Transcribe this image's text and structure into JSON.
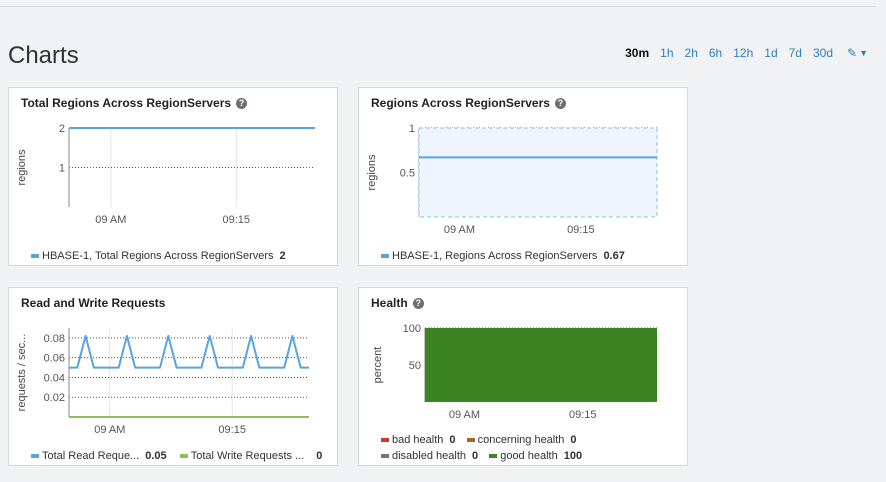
{
  "page": {
    "title": "Charts"
  },
  "time_ranges": {
    "items": [
      "30m",
      "1h",
      "2h",
      "6h",
      "12h",
      "1d",
      "7d",
      "30d"
    ],
    "active": "30m",
    "edit_icon": "pencil-icon"
  },
  "cards": {
    "total_regions": {
      "title": "Total Regions Across RegionServers",
      "ylabel": "regions",
      "legend": [
        {
          "label": "HBASE-1, Total Regions Across RegionServers",
          "value": "2",
          "color": "#5aa3df"
        }
      ]
    },
    "regions": {
      "title": "Regions Across RegionServers",
      "ylabel": "regions",
      "legend": [
        {
          "label": "HBASE-1, Regions Across RegionServers",
          "value": "0.67",
          "color": "#5aa3df"
        }
      ]
    },
    "rw": {
      "title": "Read and Write Requests",
      "ylabel": "requests / sec...",
      "legend": [
        {
          "label": "Total Read Reque...",
          "value": "0.05",
          "color": "#5aa3df"
        },
        {
          "label": "Total Write Requests ...",
          "value": "0",
          "color": "#8cbf5a"
        }
      ]
    },
    "health": {
      "title": "Health",
      "ylabel": "percent",
      "legend": [
        {
          "label": "bad health",
          "value": "0",
          "color": "#d9342b"
        },
        {
          "label": "concerning health",
          "value": "0",
          "color": "#a4661f"
        },
        {
          "label": "disabled health",
          "value": "0",
          "color": "#777777"
        },
        {
          "label": "good health",
          "value": "100",
          "color": "#3a8522"
        }
      ]
    }
  },
  "chart_data": [
    {
      "type": "line",
      "title": "Total Regions Across RegionServers",
      "ylabel": "regions",
      "xticks": [
        "09 AM",
        "09:15"
      ],
      "yticks": [
        "2",
        "1"
      ],
      "ylim": [
        0,
        2
      ],
      "grid": true,
      "series": [
        {
          "name": "HBASE-1, Total Regions Across RegionServers",
          "values": [
            2,
            2
          ]
        }
      ]
    },
    {
      "type": "area",
      "title": "Regions Across RegionServers",
      "ylabel": "regions",
      "xticks": [
        "09 AM",
        "09:15"
      ],
      "yticks": [
        "1",
        "0.5"
      ],
      "ylim": [
        0,
        1
      ],
      "grid": true,
      "series": [
        {
          "name": "HBASE-1, Regions Across RegionServers",
          "values": [
            0.67,
            0.67
          ]
        }
      ]
    },
    {
      "type": "line",
      "title": "Read and Write Requests",
      "ylabel": "requests / sec...",
      "xticks": [
        "09 AM",
        "09:15"
      ],
      "yticks": [
        "0.08",
        "0.06",
        "0.04",
        "0.02"
      ],
      "ylim": [
        0,
        0.09
      ],
      "grid": true,
      "series": [
        {
          "name": "Total Read Reque...",
          "values": [
            0.05,
            0.05,
            0.082,
            0.05,
            0.05,
            0.05,
            0.05,
            0.082,
            0.05,
            0.05,
            0.05,
            0.05,
            0.082,
            0.05,
            0.05,
            0.05,
            0.05,
            0.082,
            0.05,
            0.05,
            0.05,
            0.05,
            0.082,
            0.05,
            0.05,
            0.05,
            0.05,
            0.082,
            0.05,
            0.05
          ]
        },
        {
          "name": "Total Write Requests ...",
          "values": [
            0,
            0
          ]
        }
      ]
    },
    {
      "type": "area",
      "title": "Health",
      "ylabel": "percent",
      "xticks": [
        "09 AM",
        "09:15"
      ],
      "yticks": [
        "100",
        "50"
      ],
      "ylim": [
        0,
        100
      ],
      "grid": true,
      "series": [
        {
          "name": "bad health",
          "values": [
            0,
            0
          ]
        },
        {
          "name": "concerning health",
          "values": [
            0,
            0
          ]
        },
        {
          "name": "disabled health",
          "values": [
            0,
            0
          ]
        },
        {
          "name": "good health",
          "values": [
            100,
            100
          ]
        }
      ]
    }
  ]
}
